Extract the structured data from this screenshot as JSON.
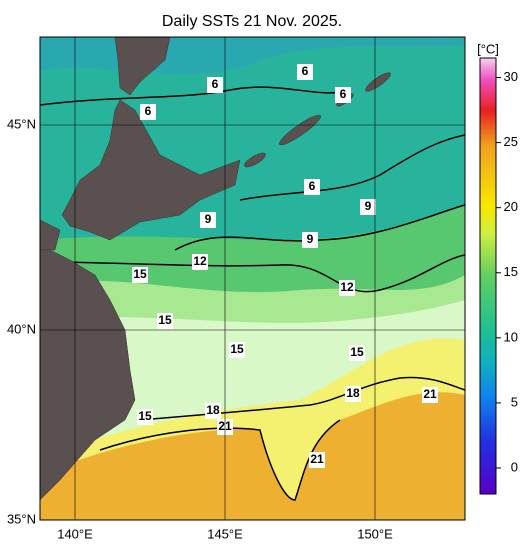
{
  "title": "Daily SSTs 21 Nov. 2025.",
  "lat_labels": [
    "45°N",
    "40°N",
    "35°N"
  ],
  "lon_labels": [
    "140°E",
    "145°E",
    "150°E"
  ],
  "colorbar": {
    "unit": "[°C]",
    "lim": [
      -2,
      31.5
    ],
    "ticks": [
      0,
      5,
      10,
      15,
      20,
      25,
      30
    ]
  },
  "contour_labels": [
    "6",
    "6",
    "6",
    "6",
    "6",
    "9",
    "9",
    "9",
    "12",
    "12",
    "15",
    "15",
    "15",
    "15",
    "15",
    "18",
    "18",
    "21",
    "21",
    "21"
  ]
}
